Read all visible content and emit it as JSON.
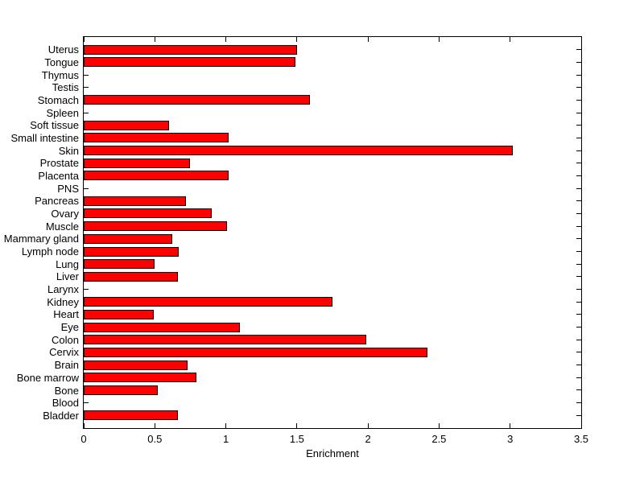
{
  "chart_data": {
    "type": "bar",
    "orientation": "horizontal",
    "title": "",
    "xlabel": "Enrichment",
    "ylabel": "",
    "xlim": [
      0,
      3.5
    ],
    "x_ticks": [
      0,
      0.5,
      1,
      1.5,
      2,
      2.5,
      3,
      3.5
    ],
    "x_tick_labels": [
      "0",
      "0.5",
      "1",
      "1.5",
      "2",
      "2.5",
      "3",
      "3.5"
    ],
    "grid": false,
    "legend": null,
    "tick_direction": "in",
    "box": true,
    "bar_color": "#ff0000",
    "bar_edge_color": "#000000",
    "axis_color": "#000000",
    "background_color": "#ffffff",
    "categories": [
      "Uterus",
      "Tongue",
      "Thymus",
      "Testis",
      "Stomach",
      "Spleen",
      "Soft tissue",
      "Small intestine",
      "Skin",
      "Prostate",
      "Placenta",
      "PNS",
      "Pancreas",
      "Ovary",
      "Muscle",
      "Mammary gland",
      "Lymph node",
      "Lung",
      "Liver",
      "Larynx",
      "Kidney",
      "Heart",
      "Eye",
      "Colon",
      "Cervix",
      "Brain",
      "Bone marrow",
      "Bone",
      "Blood",
      "Bladder"
    ],
    "values": [
      1.5,
      1.49,
      0,
      0,
      1.59,
      0,
      0.6,
      1.02,
      3.02,
      0.75,
      1.02,
      0,
      0.72,
      0.9,
      1.01,
      0.62,
      0.67,
      0.5,
      0.66,
      0,
      1.75,
      0.49,
      1.1,
      1.99,
      2.42,
      0.73,
      0.79,
      0.52,
      0,
      0.66
    ]
  }
}
